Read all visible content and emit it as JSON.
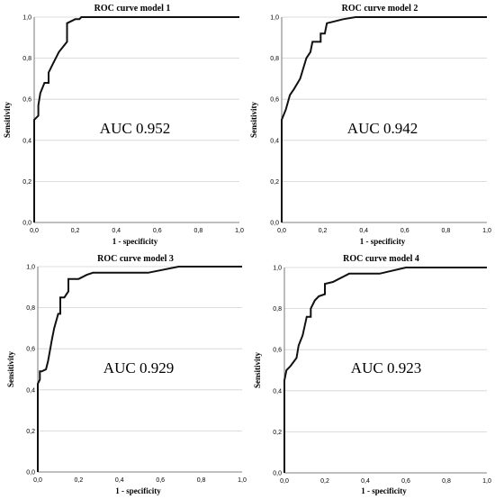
{
  "chart_data": [
    {
      "type": "line",
      "title": "ROC curve model 1",
      "xlabel": "1 - specificity",
      "ylabel": "Sensitivity",
      "xlim": [
        0,
        1
      ],
      "ylim": [
        0,
        1
      ],
      "xticks": [
        "0,0",
        "0,2",
        "0,4",
        "0,6",
        "0,8",
        "1,0"
      ],
      "yticks": [
        "0,0",
        "0,2",
        "0,4",
        "0,6",
        "0,8",
        "1,0"
      ],
      "grid": "horizontal",
      "annotation": "AUC 0.952",
      "series": [
        {
          "x": [
            0,
            0,
            0.02,
            0.02,
            0.03,
            0.05,
            0.07,
            0.07,
            0.09,
            0.12,
            0.16,
            0.16,
            0.2,
            0.22,
            0.23,
            0.25,
            1.0
          ],
          "y": [
            0,
            0.5,
            0.52,
            0.57,
            0.63,
            0.68,
            0.68,
            0.73,
            0.77,
            0.83,
            0.88,
            0.97,
            0.99,
            0.99,
            1.0,
            1.0,
            1.0
          ]
        }
      ]
    },
    {
      "type": "line",
      "title": "ROC curve model 2",
      "xlabel": "1 - specificity",
      "ylabel": "Sensitivity",
      "xlim": [
        0,
        1
      ],
      "ylim": [
        0,
        1
      ],
      "xticks": [
        "0,0",
        "0,2",
        "0,4",
        "0,6",
        "0,8",
        "1,0"
      ],
      "yticks": [
        "0,0",
        "0,2",
        "0,4",
        "0,6",
        "0,8",
        "1,0"
      ],
      "grid": "horizontal",
      "annotation": "AUC 0.942",
      "series": [
        {
          "x": [
            0,
            0,
            0.02,
            0.04,
            0.06,
            0.09,
            0.12,
            0.14,
            0.15,
            0.19,
            0.19,
            0.21,
            0.22,
            0.3,
            0.36,
            0.42,
            0.58,
            1.0
          ],
          "y": [
            0,
            0.5,
            0.55,
            0.62,
            0.65,
            0.7,
            0.8,
            0.83,
            0.88,
            0.88,
            0.92,
            0.92,
            0.97,
            0.99,
            1.0,
            1.0,
            1.0,
            1.0
          ]
        }
      ]
    },
    {
      "type": "line",
      "title": "ROC curve model 3",
      "xlabel": "1 - specificity",
      "ylabel": "Sensitivity",
      "xlim": [
        0,
        1
      ],
      "ylim": [
        0,
        1
      ],
      "xticks": [
        "0,0",
        "0,2",
        "0,4",
        "0,6",
        "0,8",
        "1,0"
      ],
      "yticks": [
        "0,0",
        "0,2",
        "0,4",
        "0,6",
        "0,8",
        "1,0"
      ],
      "grid": "horizontal",
      "annotation": "AUC 0.929",
      "series": [
        {
          "x": [
            0,
            0,
            0.01,
            0.01,
            0.02,
            0.04,
            0.05,
            0.07,
            0.08,
            0.1,
            0.11,
            0.11,
            0.13,
            0.15,
            0.15,
            0.2,
            0.24,
            0.27,
            0.54,
            0.69,
            0.7,
            1.0
          ],
          "y": [
            0,
            0.43,
            0.45,
            0.49,
            0.49,
            0.5,
            0.54,
            0.65,
            0.7,
            0.77,
            0.77,
            0.85,
            0.85,
            0.88,
            0.94,
            0.94,
            0.96,
            0.97,
            0.97,
            1.0,
            1.0,
            1.0
          ]
        }
      ]
    },
    {
      "type": "line",
      "title": "ROC curve model 4",
      "xlabel": "1 - specificity",
      "ylabel": "Sensitivity",
      "xlim": [
        0,
        1
      ],
      "ylim": [
        0,
        1
      ],
      "xticks": [
        "0,0",
        "0,2",
        "0,4",
        "0,6",
        "0,8",
        "1,0"
      ],
      "yticks": [
        "0,0",
        "0,2",
        "0,4",
        "0,6",
        "0,8",
        "1,0"
      ],
      "grid": "horizontal",
      "annotation": "AUC 0.923",
      "series": [
        {
          "x": [
            0,
            0,
            0.01,
            0.03,
            0.06,
            0.07,
            0.09,
            0.11,
            0.13,
            0.13,
            0.15,
            0.17,
            0.2,
            0.2,
            0.24,
            0.26,
            0.32,
            0.47,
            0.6,
            1.0
          ],
          "y": [
            0,
            0.45,
            0.5,
            0.52,
            0.56,
            0.62,
            0.67,
            0.76,
            0.76,
            0.8,
            0.84,
            0.86,
            0.87,
            0.92,
            0.93,
            0.94,
            0.97,
            0.97,
            1.0,
            1.0
          ]
        }
      ]
    }
  ]
}
